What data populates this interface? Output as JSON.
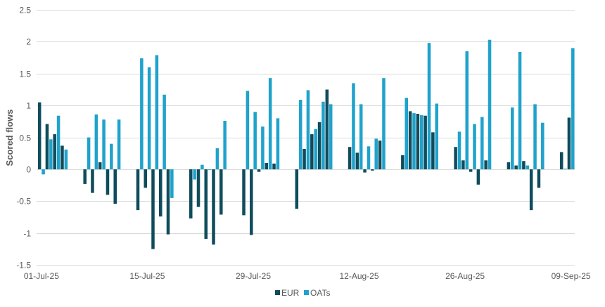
{
  "chart_data": {
    "type": "bar",
    "ylabel": "Scored flows",
    "ylim": [
      -1.5,
      2.5
    ],
    "yticks": [
      2.5,
      2,
      1.5,
      1,
      0.5,
      0,
      -0.5,
      -1,
      -1.5
    ],
    "grid": true,
    "xlim": [
      0,
      70
    ],
    "xticks": [
      {
        "x": 0,
        "label": "01-Jul-25"
      },
      {
        "x": 14,
        "label": "15-Jul-25"
      },
      {
        "x": 28,
        "label": "29-Jul-25"
      },
      {
        "x": 42,
        "label": "12-Aug-25"
      },
      {
        "x": 56,
        "label": "26-Aug-25"
      },
      {
        "x": 70,
        "label": "09-Sep-25"
      }
    ],
    "legend_position": "bottom",
    "x": [
      0,
      1,
      2,
      3,
      6,
      7,
      8,
      9,
      10,
      13,
      14,
      15,
      16,
      17,
      20,
      21,
      22,
      23,
      24,
      27,
      28,
      29,
      30,
      31,
      34,
      35,
      36,
      37,
      38,
      41,
      42,
      43,
      44,
      45,
      48,
      49,
      50,
      51,
      52,
      55,
      56,
      57,
      58,
      59,
      62,
      63,
      64,
      65,
      66,
      69,
      70
    ],
    "series": [
      {
        "name": "EUR",
        "color": "#0f4c5c",
        "values": [
          1.05,
          0.71,
          0.55,
          0.37,
          -0.23,
          -0.37,
          0.11,
          -0.4,
          -0.54,
          -0.64,
          -0.29,
          -1.25,
          -0.74,
          -1.02,
          -0.77,
          -0.59,
          -1.09,
          -1.18,
          -0.71,
          -0.72,
          -1.03,
          -0.04,
          0.1,
          0.09,
          -0.62,
          0.32,
          0.55,
          0.74,
          1.25,
          0.35,
          0.26,
          -0.05,
          -0.02,
          0.45,
          0.22,
          0.91,
          0.87,
          0.84,
          0.58,
          0.35,
          0.14,
          -0.04,
          -0.24,
          0.14,
          0.11,
          0.06,
          0.13,
          -0.64,
          -0.29,
          0.27,
          0.81
        ]
      },
      {
        "name": "OATs",
        "color": "#1fa2cc",
        "values": [
          -0.08,
          0.47,
          0.84,
          0.31,
          0.5,
          0.86,
          0.78,
          0.4,
          0.78,
          1.74,
          1.6,
          1.79,
          1.17,
          -0.45,
          -0.16,
          0.07,
          -0.01,
          0.33,
          0.76,
          1.23,
          0.9,
          0.67,
          1.43,
          0.8,
          1.09,
          1.24,
          0.63,
          1.06,
          1.02,
          1.35,
          1.02,
          0.36,
          0.48,
          1.43,
          1.12,
          0.88,
          0.85,
          1.98,
          1.03,
          0.59,
          1.85,
          0.71,
          0.82,
          2.03,
          0.97,
          1.84,
          0.06,
          1.02,
          0.73,
          0.01,
          1.9
        ]
      }
    ]
  }
}
